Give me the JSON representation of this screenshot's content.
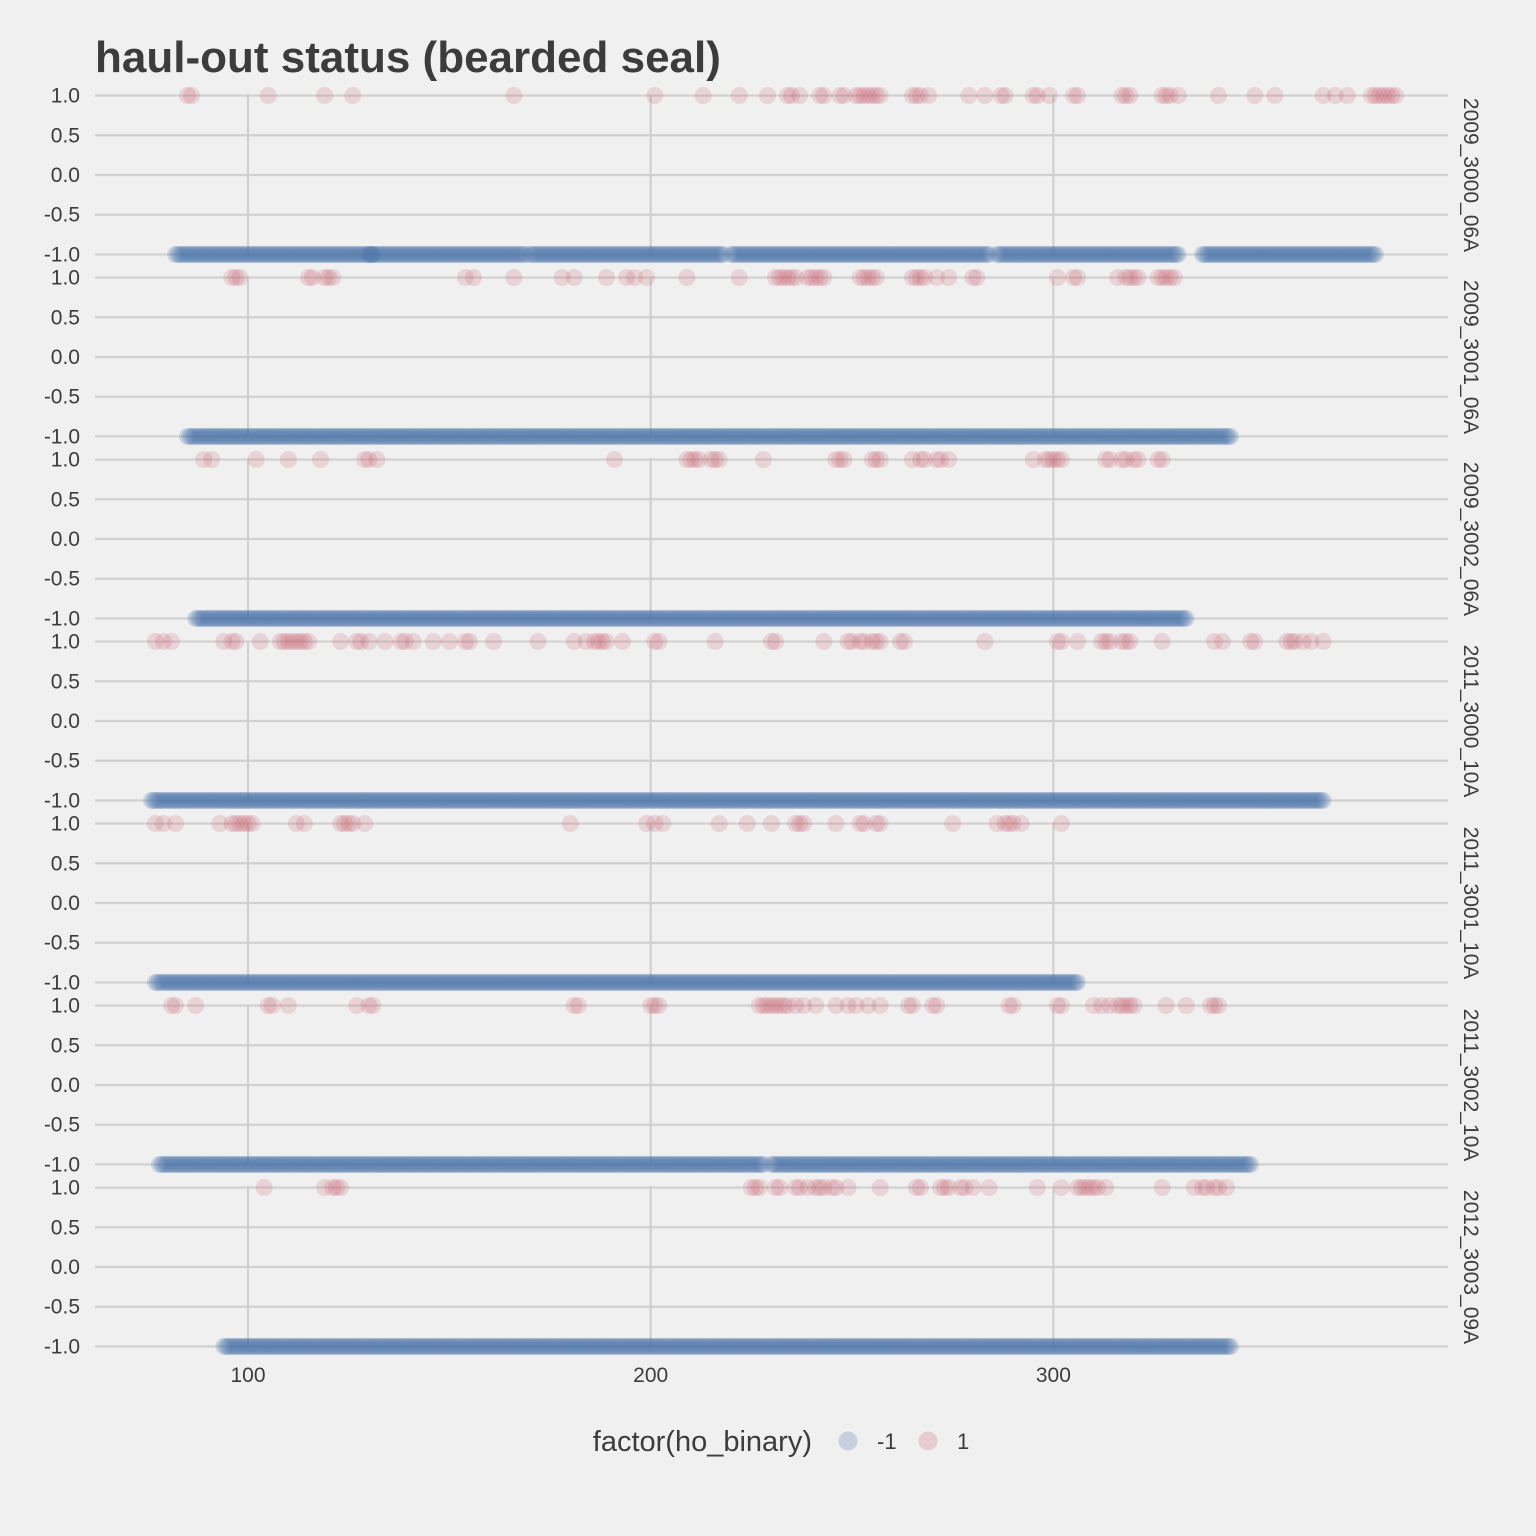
{
  "chart_data": {
    "type": "scatter",
    "title": "haul-out status (bearded seal)",
    "x_ticks": [
      100,
      200,
      300
    ],
    "xlim": [
      62,
      398
    ],
    "y_ticks": [
      1.0,
      0.5,
      0.0,
      -0.5,
      -1.0
    ],
    "y_tick_labels": [
      "1.0",
      "0.5",
      "0.0",
      "-0.5",
      "-1.0"
    ],
    "ylim": [
      -1.07,
      1.07
    ],
    "grid": true,
    "legend": {
      "title": "factor(ho_binary)",
      "position": "bottom",
      "entries": [
        {
          "label": "-1",
          "color": "#4a72a8"
        },
        {
          "label": "1",
          "color": "#c9606f"
        }
      ]
    },
    "point_alpha": 0.2,
    "panels": [
      {
        "label": "2009_3000_06A",
        "negative_ranges": [
          [
            82,
            131
          ],
          [
            130,
            169
          ],
          [
            170,
            218
          ],
          [
            220,
            284
          ],
          [
            286,
            331
          ],
          [
            337,
            380
          ]
        ],
        "positive_x": [
          85,
          86,
          105,
          119,
          126,
          166,
          201,
          213,
          222,
          229,
          234,
          235,
          237,
          242,
          243,
          247,
          248,
          251,
          252,
          253,
          254,
          255,
          256,
          257,
          265,
          266,
          267,
          269,
          279,
          283,
          287,
          288,
          295,
          296,
          299,
          305,
          306,
          317,
          318,
          319,
          327,
          328,
          329,
          331,
          341,
          350,
          355,
          367,
          370,
          373,
          379,
          380,
          381,
          382,
          383,
          384,
          385
        ]
      },
      {
        "label": "2009_3001_06A",
        "negative_ranges": [
          [
            85,
            344
          ]
        ],
        "positive_x": [
          96,
          97,
          98,
          115,
          116,
          119,
          120,
          121,
          154,
          156,
          166,
          178,
          181,
          189,
          194,
          196,
          199,
          209,
          222,
          231,
          232,
          233,
          234,
          235,
          236,
          239,
          240,
          241,
          242,
          243,
          252,
          253,
          254,
          255,
          256,
          265,
          266,
          267,
          268,
          271,
          274,
          280,
          281,
          301,
          305,
          306,
          316,
          318,
          319,
          320,
          321,
          326,
          327,
          328,
          329,
          330
        ]
      },
      {
        "label": "2009_3002_06A",
        "negative_ranges": [
          [
            87,
            333
          ]
        ],
        "positive_x": [
          89,
          91,
          102,
          110,
          118,
          129,
          130,
          132,
          191,
          209,
          210,
          211,
          212,
          215,
          216,
          217,
          228,
          246,
          247,
          248,
          255,
          256,
          257,
          265,
          267,
          268,
          271,
          272,
          274,
          295,
          298,
          299,
          300,
          301,
          302,
          313,
          314,
          317,
          318,
          320,
          321,
          326,
          327
        ]
      },
      {
        "label": "2011_3000_10A",
        "negative_ranges": [
          [
            76,
            367
          ]
        ],
        "positive_x": [
          77,
          79,
          81,
          94,
          96,
          97,
          103,
          108,
          109,
          110,
          111,
          112,
          113,
          114,
          115,
          123,
          127,
          128,
          130,
          134,
          138,
          139,
          141,
          146,
          150,
          154,
          155,
          161,
          172,
          181,
          184,
          186,
          187,
          188,
          189,
          193,
          201,
          202,
          216,
          230,
          231,
          243,
          249,
          250,
          252,
          253,
          255,
          256,
          257,
          262,
          263,
          283,
          301,
          302,
          306,
          312,
          313,
          314,
          317,
          318,
          319,
          327,
          340,
          342,
          349,
          350,
          358,
          359,
          360,
          362,
          364,
          367
        ]
      },
      {
        "label": "2011_3001_10A",
        "negative_ranges": [
          [
            77,
            306
          ]
        ],
        "positive_x": [
          77,
          79,
          82,
          93,
          96,
          97,
          98,
          99,
          100,
          101,
          112,
          114,
          123,
          124,
          125,
          126,
          129,
          180,
          199,
          201,
          203,
          217,
          224,
          230,
          236,
          237,
          238,
          246,
          252,
          253,
          256,
          257,
          275,
          286,
          288,
          289,
          290,
          292,
          302
        ]
      },
      {
        "label": "2011_3002_10A",
        "negative_ranges": [
          [
            78,
            228
          ],
          [
            230,
            349
          ]
        ],
        "positive_x": [
          81,
          82,
          87,
          105,
          106,
          110,
          127,
          130,
          131,
          181,
          182,
          200,
          201,
          202,
          227,
          228,
          229,
          230,
          231,
          232,
          233,
          234,
          236,
          238,
          241,
          246,
          249,
          251,
          254,
          257,
          264,
          265,
          270,
          271,
          289,
          290,
          301,
          302,
          310,
          312,
          314,
          316,
          317,
          318,
          319,
          320,
          328,
          333,
          339,
          340,
          341
        ]
      },
      {
        "label": "2012_3003_09A",
        "negative_ranges": [
          [
            94,
            344
          ]
        ],
        "positive_x": [
          104,
          119,
          121,
          122,
          123,
          225,
          226,
          227,
          231,
          232,
          236,
          237,
          239,
          241,
          242,
          243,
          245,
          246,
          249,
          257,
          266,
          267,
          272,
          273,
          274,
          277,
          278,
          280,
          284,
          296,
          302,
          306,
          307,
          308,
          309,
          310,
          311,
          313,
          327,
          335,
          337,
          338,
          340,
          341,
          343
        ]
      }
    ]
  }
}
